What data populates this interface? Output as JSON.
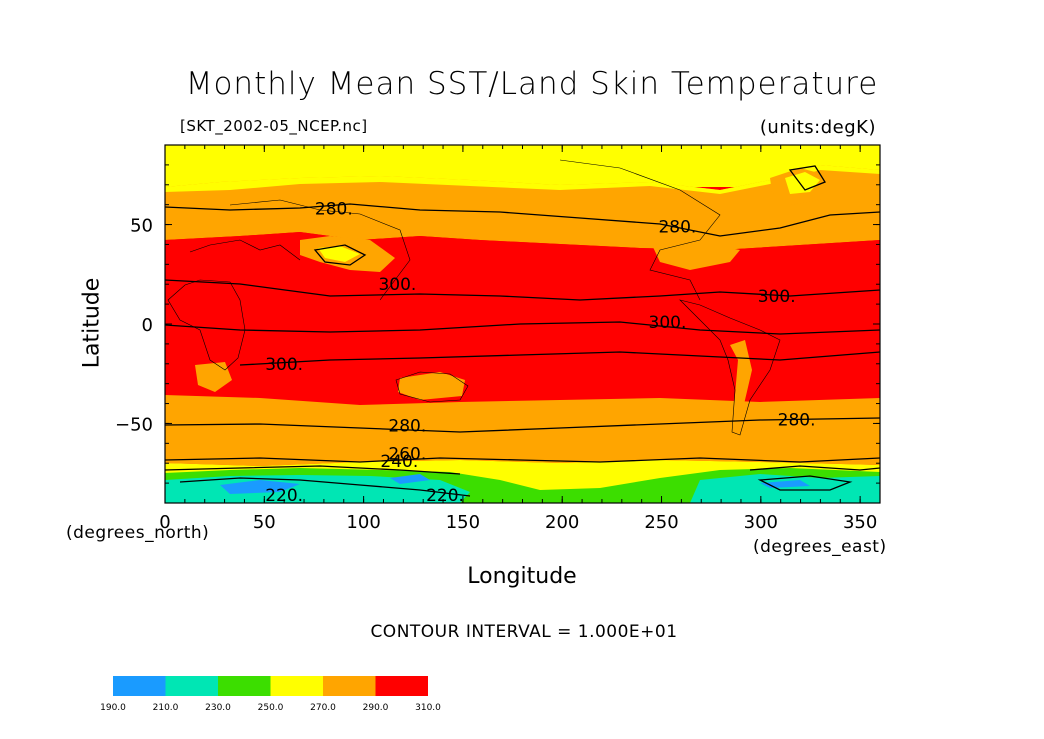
{
  "title": "Monthly Mean SST/Land Skin Temperature",
  "file_label": "[SKT_2002-05_NCEP.nc]",
  "units_label": "(units:degK)",
  "y_axis": {
    "label": "Latitude",
    "units": "(degrees_north)",
    "ticks": [
      "50",
      "0",
      "−50"
    ],
    "tick_values": [
      50,
      0,
      -50
    ],
    "range": [
      -90,
      90
    ]
  },
  "x_axis": {
    "label": "Longitude",
    "units": "(degrees_east)",
    "ticks": [
      "0",
      "50",
      "100",
      "150",
      "200",
      "250",
      "300",
      "350"
    ],
    "tick_values": [
      0,
      50,
      100,
      150,
      200,
      250,
      300,
      350
    ],
    "range": [
      0,
      360
    ]
  },
  "contour_interval": "CONTOUR INTERVAL = 1.000E+01",
  "contour_labels": [
    {
      "text": "280.",
      "lon": 85,
      "lat": 58
    },
    {
      "text": "280.",
      "lon": 258,
      "lat": 49
    },
    {
      "text": "300.",
      "lon": 117,
      "lat": 20
    },
    {
      "text": "300.",
      "lon": 308,
      "lat": 14
    },
    {
      "text": "300.",
      "lon": 253,
      "lat": 1
    },
    {
      "text": "300.",
      "lon": 60,
      "lat": -20
    },
    {
      "text": "280.",
      "lon": 122,
      "lat": -51
    },
    {
      "text": "280.",
      "lon": 318,
      "lat": -48
    },
    {
      "text": "260.",
      "lon": 122,
      "lat": -65
    },
    {
      "text": "240.",
      "lon": 118,
      "lat": -69
    },
    {
      "text": "220.",
      "lon": 60,
      "lat": -86
    },
    {
      "text": "220.",
      "lon": 141,
      "lat": -86
    }
  ],
  "colorbar": {
    "colors": [
      "#1a9bff",
      "#00e6b4",
      "#3cde00",
      "#ffff00",
      "#ffa500",
      "#ff0000"
    ],
    "labels": [
      "190.0",
      "210.0",
      "230.0",
      "250.0",
      "270.0",
      "290.0",
      "310.0"
    ]
  }
}
